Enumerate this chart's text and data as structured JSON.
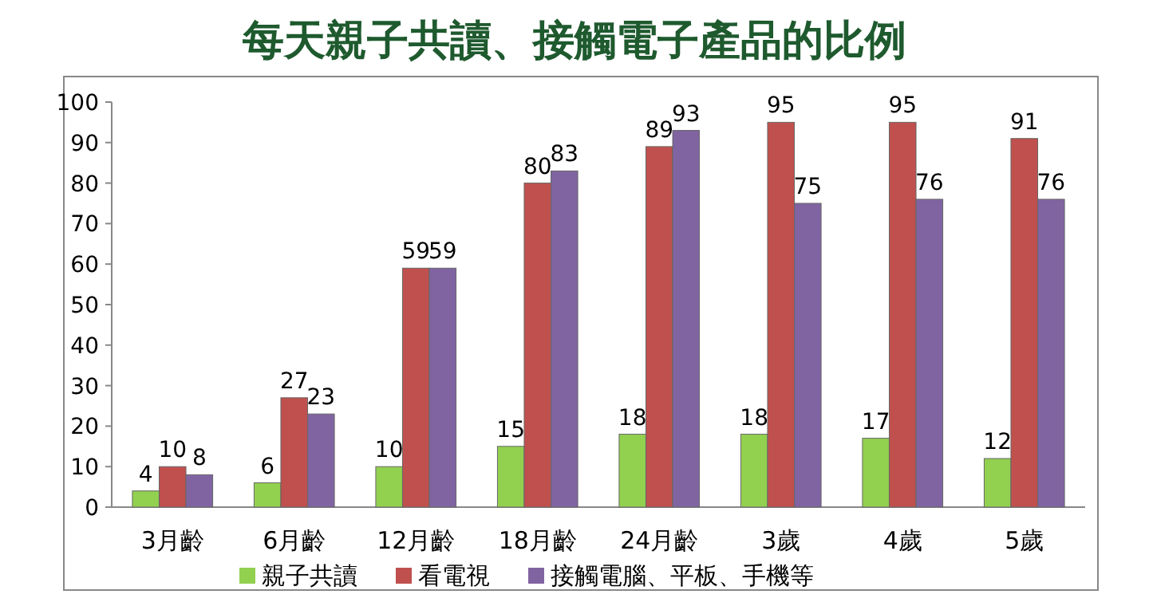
{
  "chart_data": {
    "type": "bar",
    "title": "每天親子共讀、接觸電子產品的比例",
    "categories": [
      "3月齡",
      "6月齡",
      "12月齡",
      "18月齡",
      "24月齡",
      "3歲",
      "4歲",
      "5歲"
    ],
    "series": [
      {
        "name": "親子共讀",
        "color": "#92d050",
        "values": [
          4,
          6,
          10,
          15,
          18,
          18,
          17,
          12
        ]
      },
      {
        "name": "看電視",
        "color": "#c0504d",
        "values": [
          10,
          27,
          59,
          80,
          89,
          95,
          95,
          91
        ]
      },
      {
        "name": "接觸電腦、平板、手機等",
        "color": "#8064a2",
        "values": [
          8,
          23,
          59,
          83,
          93,
          75,
          76,
          76
        ]
      }
    ],
    "ylim": [
      0,
      100
    ],
    "yticks": [
      0,
      10,
      20,
      30,
      40,
      50,
      60,
      70,
      80,
      90,
      100
    ],
    "data_labels": true,
    "legend": "bottom"
  }
}
